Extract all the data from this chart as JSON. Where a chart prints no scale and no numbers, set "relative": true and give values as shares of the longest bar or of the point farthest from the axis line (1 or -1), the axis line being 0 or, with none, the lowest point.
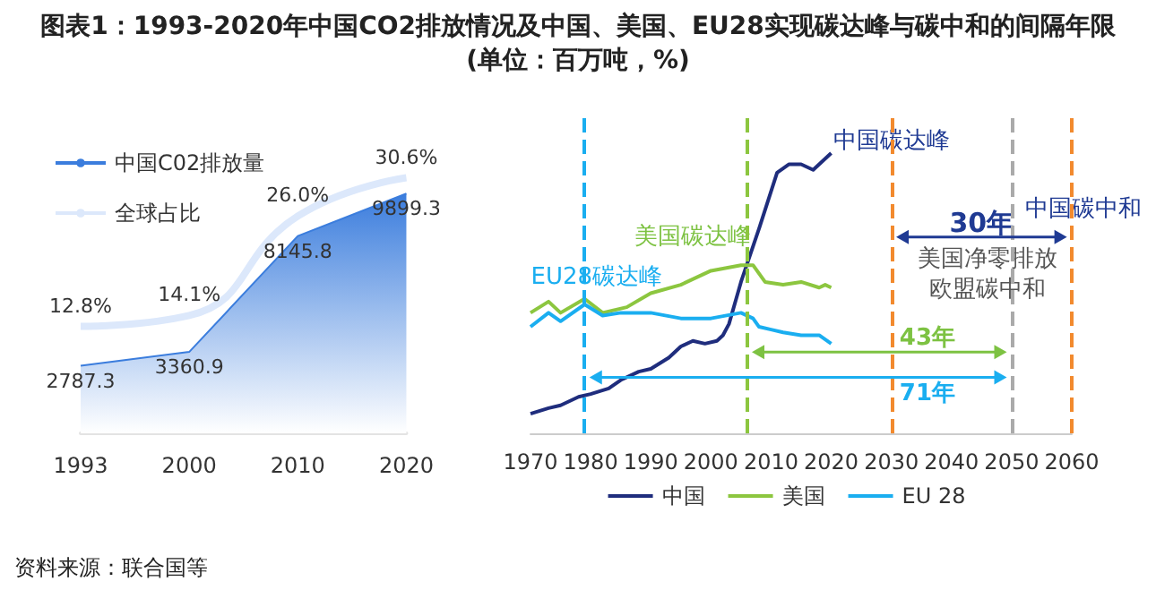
{
  "chart_data": [
    {
      "type": "area",
      "title": "图表1：1993-2020年中国CO2排放情况及中国、美国、EU28实现碳达峰与碳中和的间隔年限(单位：百万吨，%)",
      "categories": [
        "1993",
        "2000",
        "2010",
        "2020"
      ],
      "legend": "top left",
      "tick_labels": "x",
      "marker": "none",
      "series": [
        {
          "name": "中国C02排放量",
          "type": "area",
          "color": "#3b7ddd",
          "values": [
            2787.3,
            3360.9,
            8145.8,
            9899.3
          ],
          "value_labels": [
            "2787.3",
            "3360.9",
            "8145.8",
            "9899.3"
          ]
        },
        {
          "name": "全球占比",
          "type": "line",
          "axis": "y2",
          "color": "#dce8fb",
          "values": [
            12.8,
            14.1,
            26.0,
            30.6
          ],
          "value_labels": [
            "12.8%",
            "14.1%",
            "26.0%",
            "30.6%"
          ]
        }
      ],
      "annotations": [
        "资料来源：联合国等"
      ]
    },
    {
      "type": "line",
      "relative": true,
      "xlim": [
        1970,
        2060
      ],
      "xticks": [
        1970,
        1980,
        1990,
        2000,
        2010,
        2020,
        2030,
        2040,
        2050,
        2060
      ],
      "legend": "bottom",
      "tick_labels": "x",
      "marker": "none",
      "series": [
        {
          "name": "中国",
          "color": "#1f2d7d",
          "x": [
            1970,
            1973,
            1975,
            1978,
            1980,
            1983,
            1985,
            1988,
            1990,
            1993,
            1995,
            1997,
            1999,
            2001,
            2002,
            2003,
            2005,
            2008,
            2011,
            2013,
            2015,
            2017,
            2020
          ],
          "values": [
            0.07,
            0.09,
            0.1,
            0.13,
            0.14,
            0.16,
            0.19,
            0.22,
            0.23,
            0.27,
            0.31,
            0.33,
            0.32,
            0.33,
            0.35,
            0.39,
            0.54,
            0.73,
            0.93,
            0.96,
            0.96,
            0.94,
            1.0
          ]
        },
        {
          "name": "美国",
          "color": "#8cc63f",
          "x": [
            1970,
            1973,
            1975,
            1979,
            1982,
            1986,
            1990,
            1995,
            2000,
            2005,
            2007,
            2009,
            2012,
            2015,
            2018,
            2019,
            2020
          ],
          "values": [
            0.43,
            0.47,
            0.43,
            0.48,
            0.43,
            0.45,
            0.5,
            0.53,
            0.58,
            0.6,
            0.6,
            0.54,
            0.53,
            0.54,
            0.52,
            0.53,
            0.52
          ]
        },
        {
          "name": "EU 28",
          "color": "#1aaef0",
          "x": [
            1970,
            1973,
            1975,
            1979,
            1982,
            1985,
            1990,
            1995,
            2000,
            2005,
            2007,
            2008,
            2010,
            2012,
            2015,
            2018,
            2020
          ],
          "values": [
            0.38,
            0.43,
            0.4,
            0.46,
            0.42,
            0.43,
            0.43,
            0.41,
            0.41,
            0.43,
            0.41,
            0.38,
            0.37,
            0.36,
            0.35,
            0.35,
            0.32
          ]
        }
      ],
      "ref_lines": [
        {
          "axis": "x",
          "value": 1979,
          "label": "EU28碳达峰",
          "color": "#1aaef0",
          "line_style": "dashed"
        },
        {
          "axis": "x",
          "value": 2006,
          "label": "美国碳达峰",
          "color": "#8cc63f",
          "line_style": "dashed"
        },
        {
          "axis": "x",
          "value": 2030,
          "label": "中国碳达峰",
          "color": "#f28a2e",
          "line_style": "dashed"
        },
        {
          "axis": "x",
          "value": 2050,
          "label": "美国净零排放欧盟碳中和",
          "color": "#aaaaaa",
          "line_style": "dashed"
        },
        {
          "axis": "x",
          "value": 2060,
          "label": "中国碳中和",
          "color": "#f28a2e",
          "line_style": "dashed"
        }
      ],
      "annotations": [
        "30年",
        "43年",
        "71年"
      ]
    }
  ]
}
